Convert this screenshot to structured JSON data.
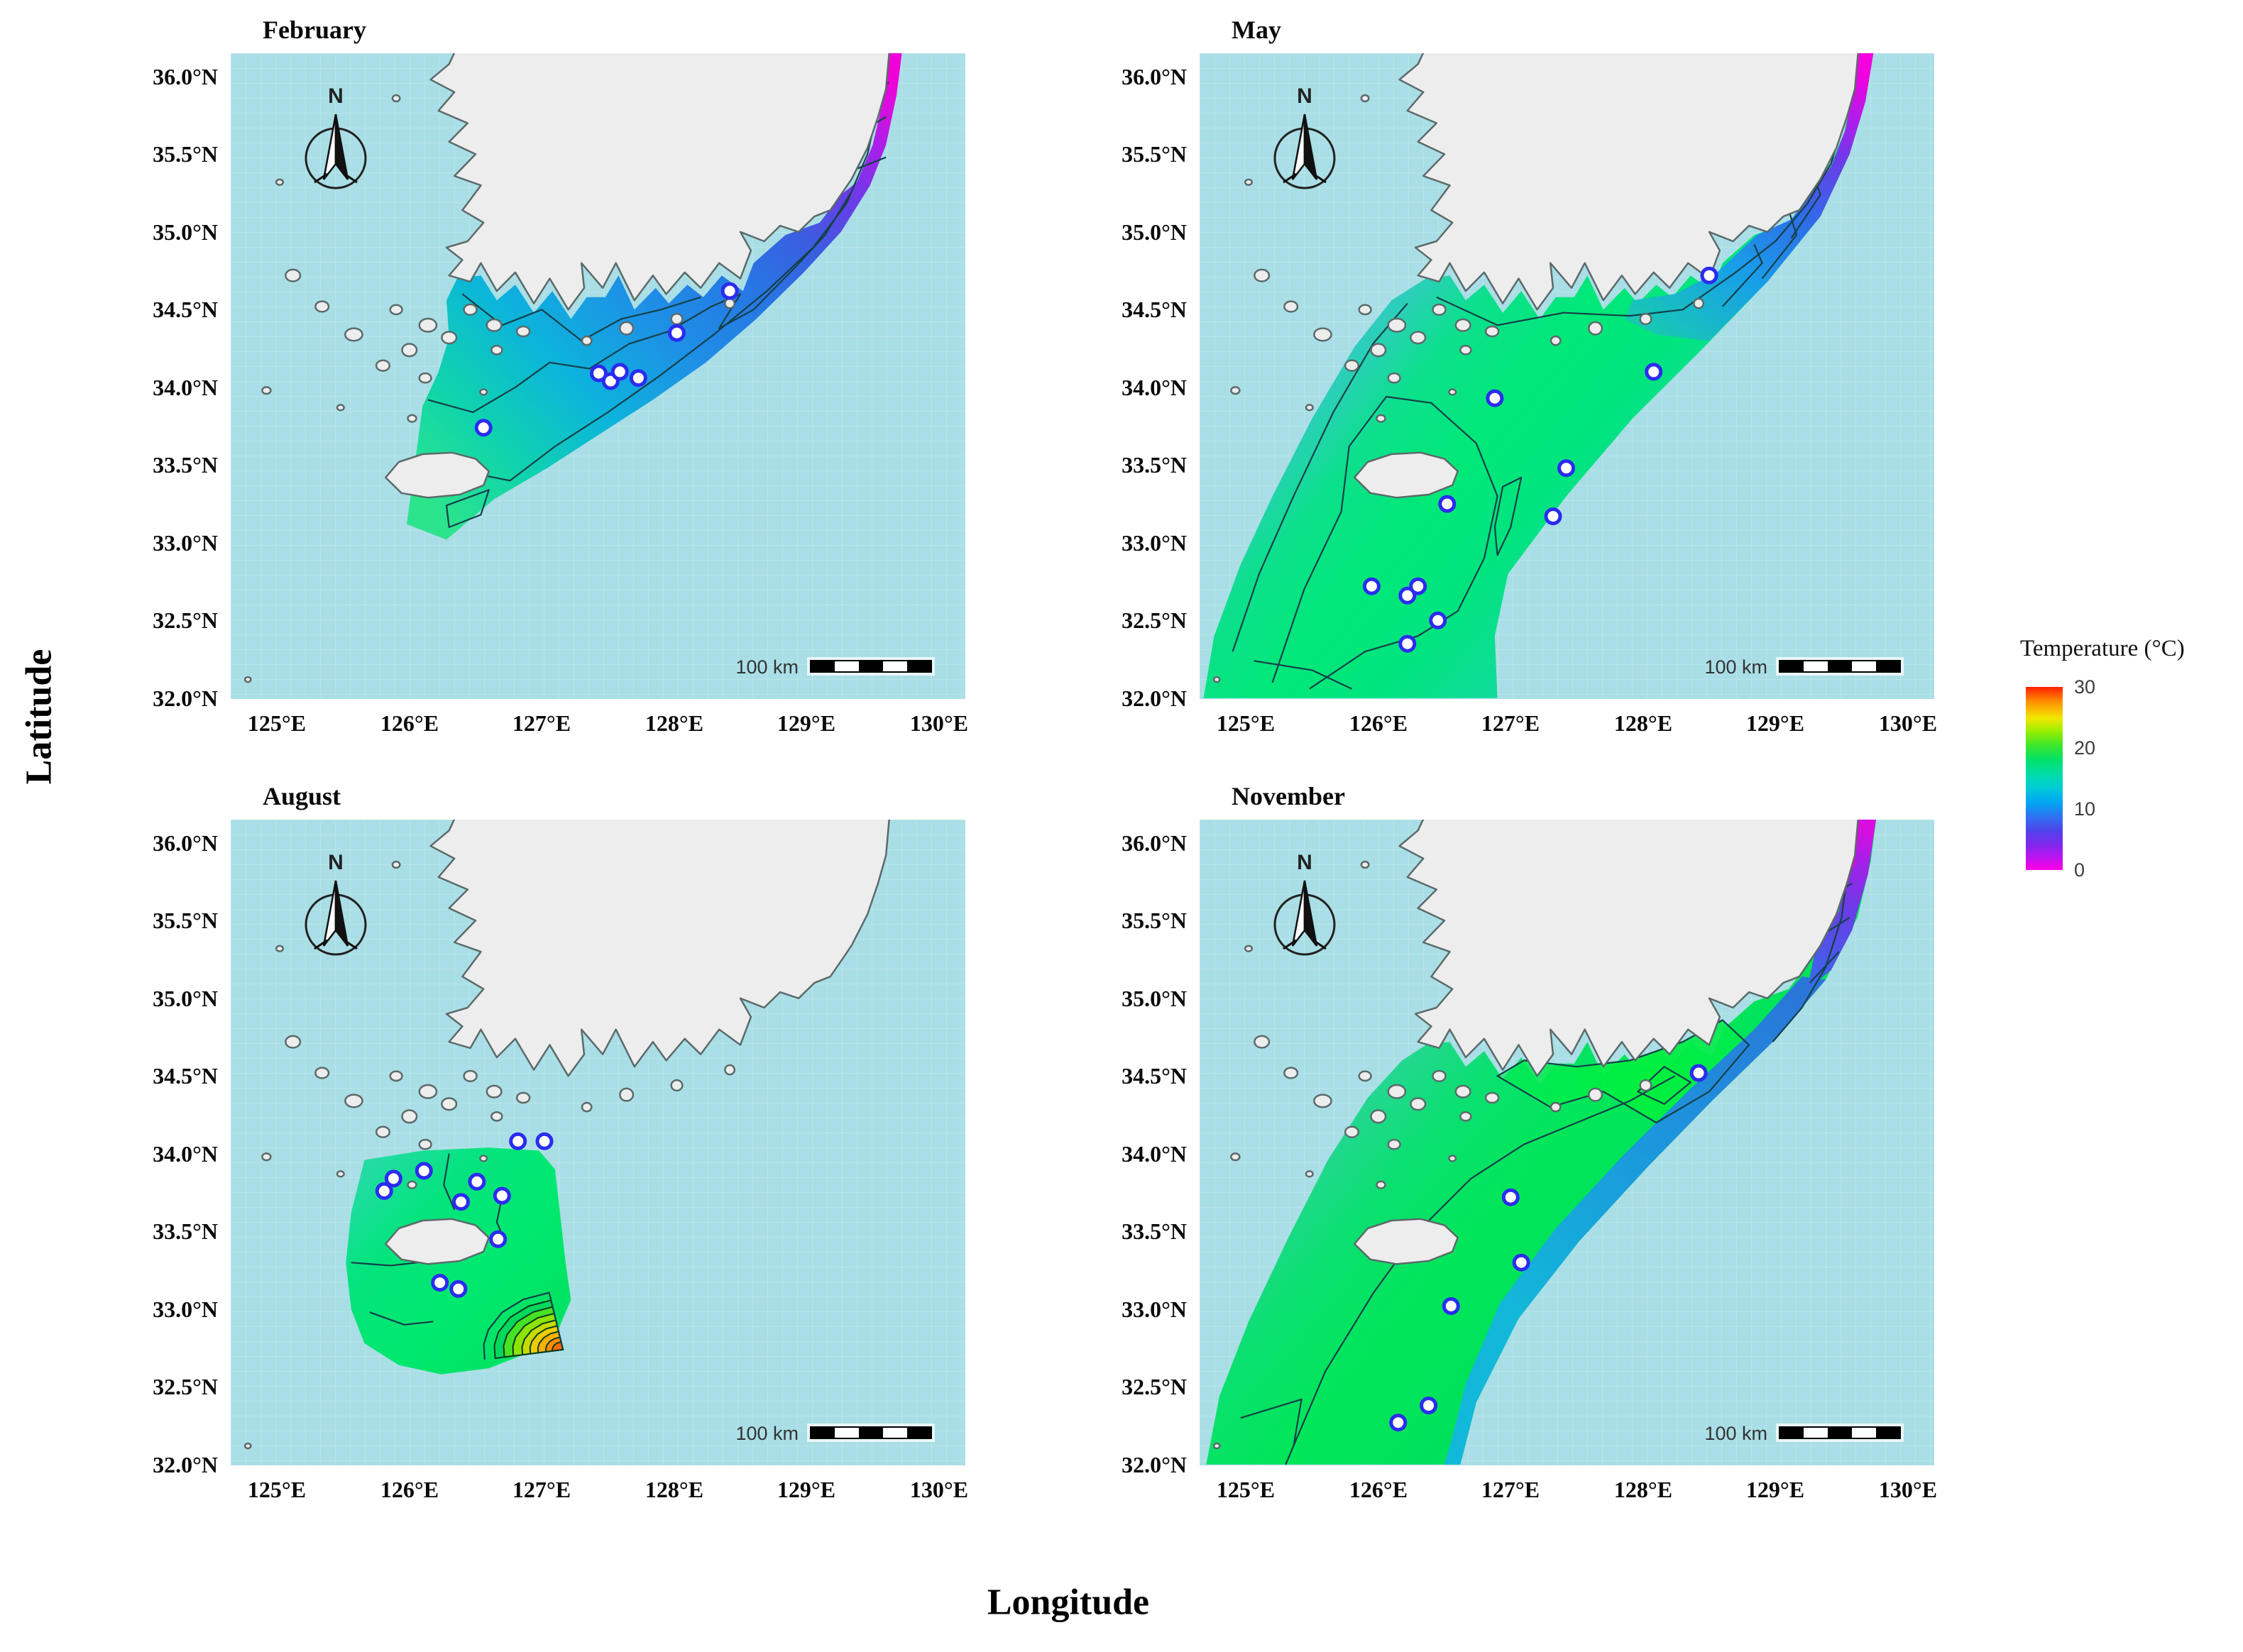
{
  "figure": {
    "y_axis_label": "Latitude",
    "x_axis_label": "Longitude"
  },
  "axes": {
    "x_tick_labels": [
      "125°E",
      "126°E",
      "127°E",
      "128°E",
      "129°E",
      "130°E"
    ],
    "x_tick_lons": [
      125,
      126,
      127,
      128,
      129,
      130
    ],
    "y_tick_labels": [
      "36.0°N",
      "35.5°N",
      "35.0°N",
      "34.5°N",
      "34.0°N",
      "33.5°N",
      "33.0°N",
      "32.5°N",
      "32.0°N"
    ],
    "y_tick_lats": [
      36.0,
      35.5,
      35.0,
      34.5,
      34.0,
      33.5,
      33.0,
      32.5,
      32.0
    ],
    "lon_min": 124.65,
    "lon_max": 130.2,
    "lat_min": 32.0,
    "lat_max": 36.15
  },
  "legend": {
    "title": "Temperature (°C)",
    "tick_labels": [
      "30",
      "20",
      "10",
      "0"
    ],
    "tick_values": [
      30,
      20,
      10,
      0
    ],
    "value_min": 0,
    "value_max": 30,
    "colors_top_to_bottom": [
      "#ff1e00",
      "#ff9000",
      "#f2e600",
      "#9cee00",
      "#3ce62a",
      "#00e26a",
      "#00dcaa",
      "#00ccd6",
      "#00a6f2",
      "#2f72f2",
      "#4c46ea",
      "#8028ee",
      "#bc14f0",
      "#ff00e4"
    ]
  },
  "map_style": {
    "sea": "#a9dee6",
    "land": "#ededed",
    "coast": "#5c6a6a",
    "contour": "#14404a",
    "point_fill": "#ffffff",
    "point_ring": "#2b2bf0"
  },
  "panels": [
    {
      "id": "february",
      "title": "February",
      "compass_label": "N",
      "scale_bar_label": "100 km",
      "sample_points": [
        [
          128.42,
          34.62
        ],
        [
          128.02,
          34.35
        ],
        [
          127.43,
          34.09
        ],
        [
          127.52,
          34.04
        ],
        [
          127.59,
          34.1
        ],
        [
          127.73,
          34.06
        ],
        [
          126.56,
          33.74
        ]
      ]
    },
    {
      "id": "may",
      "title": "May",
      "compass_label": "N",
      "scale_bar_label": "100 km",
      "sample_points": [
        [
          128.5,
          34.72
        ],
        [
          128.08,
          34.1
        ],
        [
          126.88,
          33.93
        ],
        [
          127.42,
          33.48
        ],
        [
          127.32,
          33.17
        ],
        [
          126.52,
          33.25
        ],
        [
          125.95,
          32.72
        ],
        [
          126.22,
          32.66
        ],
        [
          126.3,
          32.72
        ],
        [
          126.45,
          32.5
        ],
        [
          126.22,
          32.35
        ]
      ]
    },
    {
      "id": "august",
      "title": "August",
      "compass_label": "N",
      "scale_bar_label": "100 km",
      "sample_points": [
        [
          126.82,
          34.08
        ],
        [
          127.02,
          34.08
        ],
        [
          126.11,
          33.89
        ],
        [
          125.88,
          33.84
        ],
        [
          125.81,
          33.76
        ],
        [
          126.51,
          33.82
        ],
        [
          126.7,
          33.73
        ],
        [
          126.39,
          33.69
        ],
        [
          126.67,
          33.45
        ],
        [
          126.23,
          33.17
        ],
        [
          126.37,
          33.13
        ]
      ]
    },
    {
      "id": "november",
      "title": "November",
      "compass_label": "N",
      "scale_bar_label": "100 km",
      "sample_points": [
        [
          128.42,
          34.52
        ],
        [
          127.0,
          33.72
        ],
        [
          127.08,
          33.3
        ],
        [
          126.55,
          33.02
        ],
        [
          126.38,
          32.38
        ],
        [
          126.15,
          32.27
        ]
      ]
    }
  ]
}
